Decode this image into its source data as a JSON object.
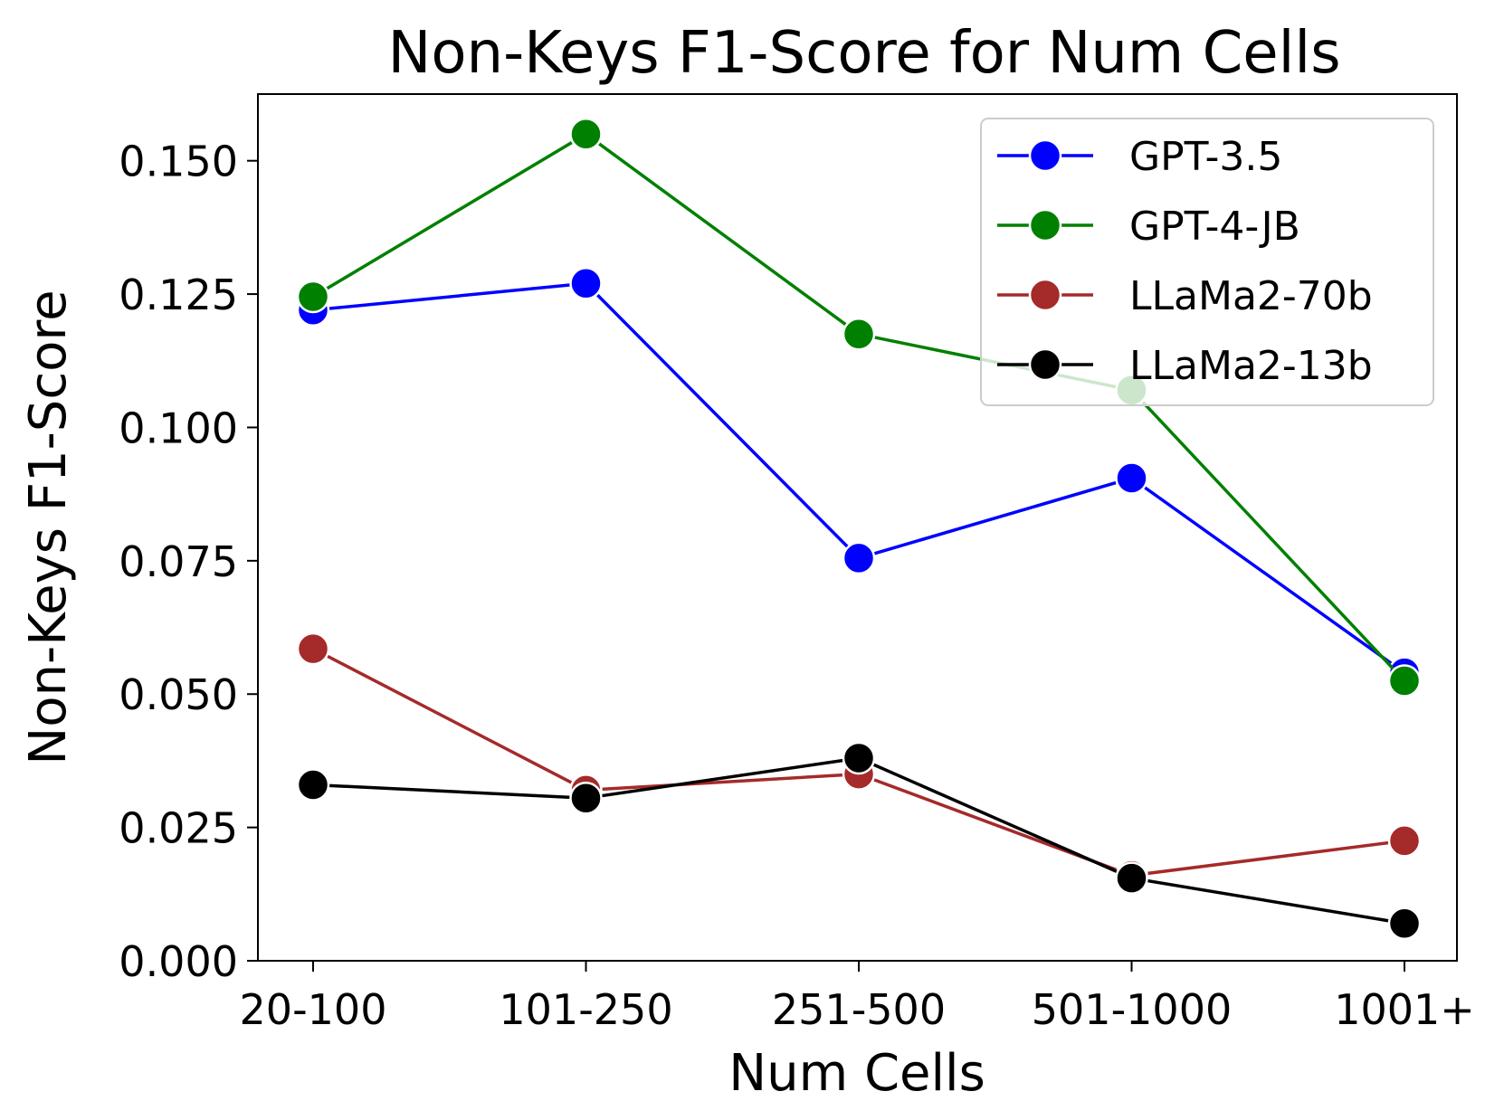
{
  "chart_data": {
    "type": "line",
    "title": "Non-Keys F1-Score for Num Cells",
    "xlabel": "Num Cells",
    "ylabel": "Non-Keys F1-Score",
    "categories": [
      "20-100",
      "101-250",
      "251-500",
      "501-1000",
      "1001+"
    ],
    "ylim": [
      0.0,
      0.1625
    ],
    "yticks": [
      "0.000",
      "0.025",
      "0.050",
      "0.075",
      "0.100",
      "0.125",
      "0.150"
    ],
    "ytick_values": [
      0.0,
      0.025,
      0.05,
      0.075,
      0.1,
      0.125,
      0.15
    ],
    "grid": false,
    "legend_position": "top-right",
    "series": [
      {
        "name": "GPT-3.5",
        "color": "#0000ff",
        "values": [
          0.122,
          0.127,
          0.0755,
          0.0905,
          0.054
        ]
      },
      {
        "name": "GPT-4-JB",
        "color": "#008000",
        "values": [
          0.1245,
          0.155,
          0.1175,
          0.107,
          0.0525
        ]
      },
      {
        "name": "LLaMa2-70b",
        "color": "#a52a2a",
        "values": [
          0.0585,
          0.032,
          0.035,
          0.016,
          0.0225
        ]
      },
      {
        "name": "LLaMa2-13b",
        "color": "#000000",
        "values": [
          0.033,
          0.0305,
          0.038,
          0.0155,
          0.007
        ]
      }
    ]
  }
}
